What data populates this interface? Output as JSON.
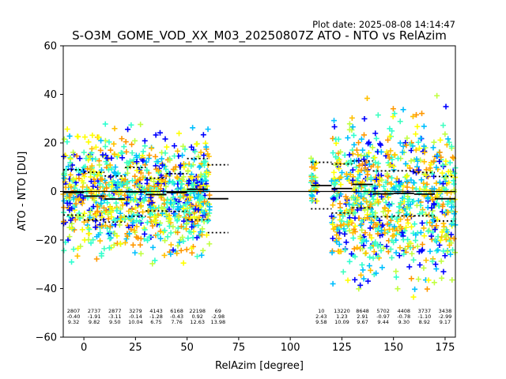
{
  "plot_date": "Plot date: 2025-08-08 14:14:47",
  "chart_data": {
    "type": "scatter",
    "title": "S-O3M_GOME_VOD_XX_M03_20250807Z ATO - NTO vs RelAzim",
    "xlabel": "RelAzim [degree]",
    "ylabel": "ATO - NTO [DU]",
    "xlim": [
      -10,
      180
    ],
    "ylim": [
      -60,
      60
    ],
    "xticks": [
      0,
      25,
      50,
      75,
      100,
      125,
      150,
      175
    ],
    "yticks": [
      -60,
      -40,
      -20,
      0,
      20,
      40,
      60
    ],
    "grid": false,
    "marker": "+",
    "colormap_colors": [
      "#0000ff",
      "#00bfff",
      "#40ffc0",
      "#30ffd0",
      "#c0ff40",
      "#ffff00",
      "#ffc000",
      "#ff9800"
    ],
    "zero_line": 0,
    "bins": [
      {
        "x_start": -10,
        "x_end": 0,
        "count": "2807",
        "mean": "-0.40",
        "std": "9.32"
      },
      {
        "x_start": 0,
        "x_end": 10,
        "count": "2737",
        "mean": "-1.91",
        "std": "9.82"
      },
      {
        "x_start": 10,
        "x_end": 20,
        "count": "2877",
        "mean": "-3.11",
        "std": "9.50"
      },
      {
        "x_start": 20,
        "x_end": 30,
        "count": "3279",
        "mean": "-0.14",
        "std": "10.04"
      },
      {
        "x_start": 30,
        "x_end": 40,
        "count": "4143",
        "mean": "-1.28",
        "std": "6.75"
      },
      {
        "x_start": 40,
        "x_end": 50,
        "count": "6168",
        "mean": "-0.43",
        "std": "7.76"
      },
      {
        "x_start": 50,
        "x_end": 60,
        "count": "22198",
        "mean": "0.92",
        "std": "12.63"
      },
      {
        "x_start": 60,
        "x_end": 70,
        "count": "69",
        "mean": "-2.98",
        "std": "13.98"
      },
      {
        "x_start": 110,
        "x_end": 120,
        "count": "10",
        "mean": "2.43",
        "std": "9.58"
      },
      {
        "x_start": 120,
        "x_end": 130,
        "count": "13220",
        "mean": "1.23",
        "std": "10.09"
      },
      {
        "x_start": 130,
        "x_end": 140,
        "count": "8648",
        "mean": "2.91",
        "std": "9.67"
      },
      {
        "x_start": 140,
        "x_end": 150,
        "count": "5702",
        "mean": "-0.97",
        "std": "9.44"
      },
      {
        "x_start": 150,
        "x_end": 160,
        "count": "4408",
        "mean": "-0.78",
        "std": "9.30"
      },
      {
        "x_start": 160,
        "x_end": 170,
        "count": "3737",
        "mean": "-1.10",
        "std": "8.92"
      },
      {
        "x_start": 170,
        "x_end": 180,
        "count": "3438",
        "mean": "-2.99",
        "std": "9.17"
      }
    ],
    "clusters": [
      {
        "x_range": [
          -10,
          61
        ],
        "y_min": -35,
        "y_max": 32
      },
      {
        "x_range": [
          110,
          113
        ],
        "y_min": -12,
        "y_max": 20
      },
      {
        "x_range": [
          120,
          180
        ],
        "y_min": -50,
        "y_max": 42
      }
    ]
  }
}
